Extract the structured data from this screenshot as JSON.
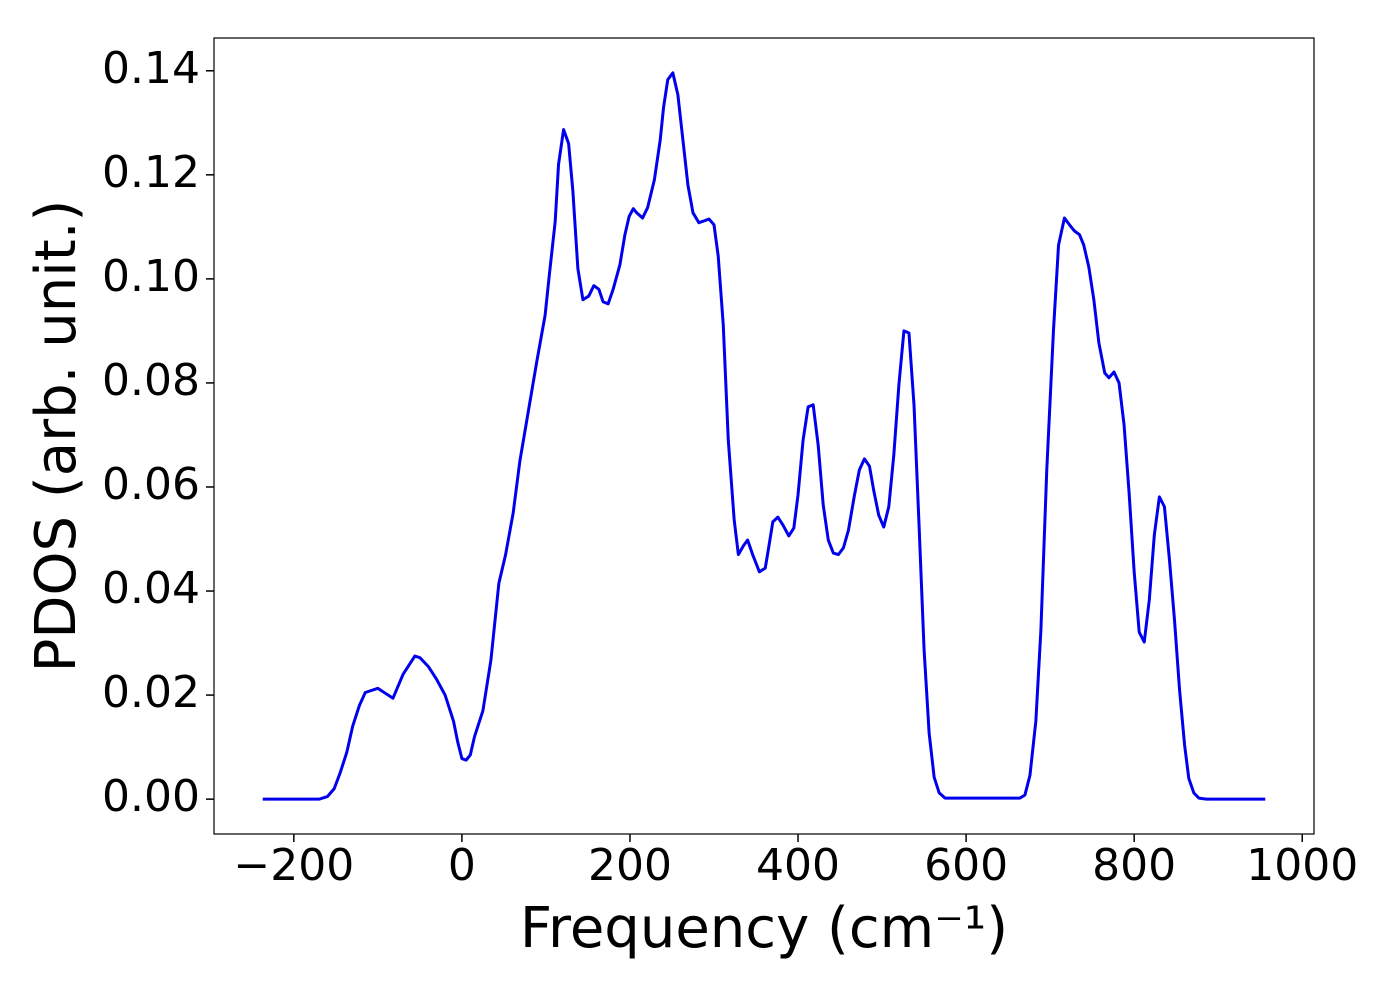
{
  "chart_data": {
    "type": "line",
    "xlabel": "Frequency (cm⁻¹)",
    "ylabel": "PDOS (arb. unit.)",
    "x": [
      -237,
      -170,
      -160,
      -152,
      -145,
      -137,
      -130,
      -122,
      -115,
      -100,
      -82,
      -70,
      -56,
      -50,
      -40,
      -30,
      -20,
      -10,
      -5,
      0,
      5,
      10,
      15,
      25,
      34.5,
      44,
      52,
      61,
      69,
      89,
      99,
      104,
      111,
      115,
      121,
      127,
      132,
      138,
      144,
      151,
      157,
      163,
      168,
      174,
      180,
      188,
      194,
      199,
      204,
      208,
      215,
      221,
      229,
      236,
      240,
      245,
      251,
      257,
      263,
      269,
      275,
      282,
      289,
      294,
      300,
      305,
      311,
      317,
      324,
      329,
      335,
      340,
      346,
      354,
      361,
      365,
      370,
      376,
      382,
      389,
      395,
      400,
      406,
      412,
      418,
      424,
      430,
      436,
      442,
      448,
      454,
      460,
      467,
      473,
      479,
      485,
      490,
      496,
      502,
      508,
      514,
      520,
      526,
      532,
      538,
      544,
      550,
      556,
      562,
      568,
      575,
      664,
      670,
      676,
      683,
      689,
      696,
      704,
      710,
      717,
      723,
      729,
      735,
      740,
      746,
      752,
      758,
      765,
      770,
      776,
      782,
      788,
      794,
      800,
      806,
      812,
      818,
      824,
      830,
      836,
      842,
      848,
      854,
      860,
      865,
      871,
      877,
      886,
      956
    ],
    "series": [
      {
        "name": "PDOS",
        "color": "#0000ee",
        "values": [
          0,
          0,
          0.0005,
          0.002,
          0.005,
          0.009,
          0.014,
          0.018,
          0.0205,
          0.0213,
          0.0194,
          0.024,
          0.0275,
          0.0272,
          0.0255,
          0.023,
          0.02,
          0.015,
          0.011,
          0.0078,
          0.0075,
          0.0085,
          0.012,
          0.017,
          0.0267,
          0.0415,
          0.047,
          0.055,
          0.065,
          0.084,
          0.093,
          0.1007,
          0.111,
          0.122,
          0.1287,
          0.126,
          0.117,
          0.102,
          0.096,
          0.0967,
          0.0987,
          0.098,
          0.0956,
          0.0952,
          0.098,
          0.1027,
          0.1085,
          0.112,
          0.1135,
          0.1127,
          0.1117,
          0.1137,
          0.119,
          0.1267,
          0.133,
          0.1383,
          0.1396,
          0.1354,
          0.1267,
          0.118,
          0.1127,
          0.1108,
          0.1112,
          0.1115,
          0.1104,
          0.1044,
          0.0912,
          0.069,
          0.0537,
          0.047,
          0.0487,
          0.0498,
          0.047,
          0.0437,
          0.0444,
          0.0483,
          0.0533,
          0.0542,
          0.0527,
          0.0506,
          0.0521,
          0.0585,
          0.069,
          0.0754,
          0.0758,
          0.068,
          0.0565,
          0.0498,
          0.0473,
          0.047,
          0.0483,
          0.0517,
          0.0583,
          0.0633,
          0.0654,
          0.064,
          0.0594,
          0.0546,
          0.0523,
          0.0562,
          0.0662,
          0.0796,
          0.09,
          0.0896,
          0.0758,
          0.0527,
          0.0287,
          0.0127,
          0.0042,
          0.0012,
          0.0002,
          0.0002,
          0.0008,
          0.0046,
          0.015,
          0.0325,
          0.0633,
          0.0902,
          0.1065,
          0.1117,
          0.1104,
          0.1092,
          0.1085,
          0.1065,
          0.1023,
          0.096,
          0.0877,
          0.0819,
          0.081,
          0.0821,
          0.08,
          0.0719,
          0.0588,
          0.0437,
          0.0321,
          0.0302,
          0.0383,
          0.0508,
          0.0581,
          0.0562,
          0.046,
          0.0344,
          0.021,
          0.0104,
          0.004,
          0.0012,
          0.0002,
          0,
          0
        ]
      }
    ],
    "xlim": [
      -295,
      1014
    ],
    "ylim": [
      -0.0067,
      0.1463
    ],
    "xticks": [
      {
        "value": -200,
        "label": "−200"
      },
      0,
      200,
      400,
      600,
      800,
      1000
    ],
    "yticks": [
      {
        "value": 0,
        "label": "0.00"
      },
      0.02,
      0.04,
      0.06,
      0.08,
      {
        "value": 0.1,
        "label": "0.10"
      },
      0.12,
      0.14
    ]
  }
}
